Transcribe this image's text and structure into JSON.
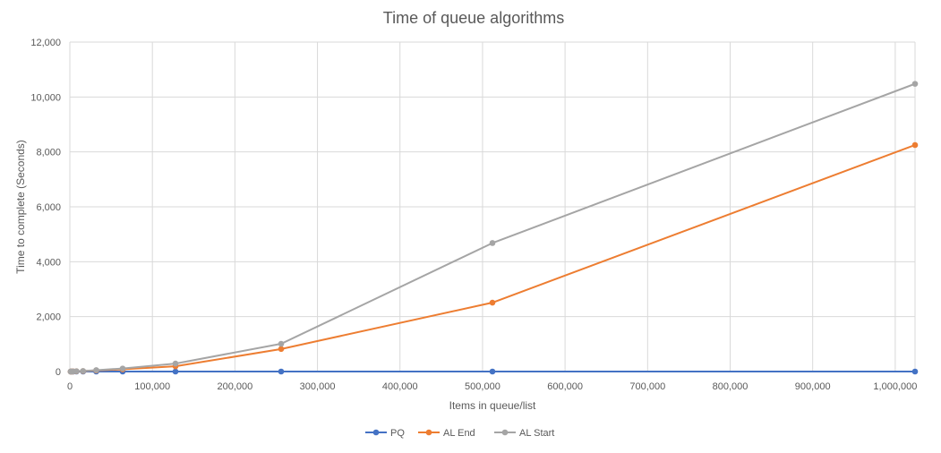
{
  "chart_data": {
    "type": "line",
    "title": "Time of queue algorithms",
    "xlabel": "Items in queue/list",
    "ylabel": "Time to complete (Seconds)",
    "xlim": [
      0,
      1024000
    ],
    "ylim": [
      0,
      12000
    ],
    "x_ticks": [
      0,
      100000,
      200000,
      300000,
      400000,
      500000,
      600000,
      700000,
      800000,
      900000,
      1000000
    ],
    "y_ticks": [
      0,
      2000,
      4000,
      6000,
      8000,
      10000,
      12000
    ],
    "grid": true,
    "legend_position": "bottom",
    "x": [
      1000,
      2000,
      4000,
      8000,
      16000,
      32000,
      64000,
      128000,
      256000,
      512000,
      1024000
    ],
    "series": [
      {
        "name": "PQ",
        "color": "#4472c4",
        "values": [
          0,
          0,
          0,
          0,
          0,
          0,
          0,
          0,
          0,
          0,
          0
        ]
      },
      {
        "name": "AL End",
        "color": "#ed7d31",
        "values": [
          0,
          1,
          3,
          10,
          15,
          40,
          80,
          190,
          820,
          2510,
          8250
        ]
      },
      {
        "name": "AL Start",
        "color": "#a5a5a5",
        "values": [
          0,
          1,
          4,
          12,
          20,
          50,
          110,
          290,
          1010,
          4680,
          10480
        ]
      }
    ]
  }
}
